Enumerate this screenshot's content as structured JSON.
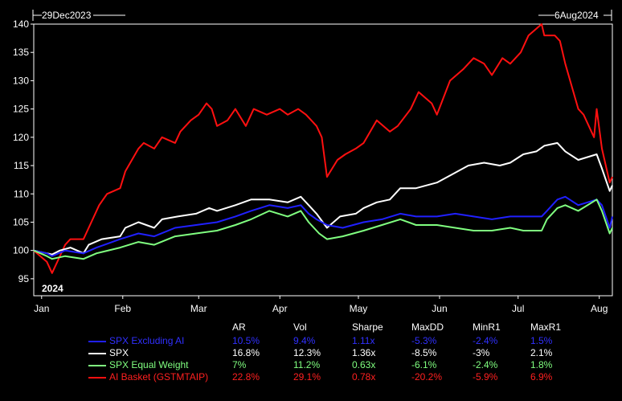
{
  "header": {
    "start_date": "29Dec2023",
    "end_date": "6Aug2024"
  },
  "chart_data": {
    "type": "line",
    "year_label": "2024",
    "x_tick_labels": [
      "Jan",
      "Feb",
      "Mar",
      "Apr",
      "May",
      "Jun",
      "Jul",
      "Aug"
    ],
    "ylim": [
      92,
      140
    ],
    "y_ticks": [
      95,
      100,
      105,
      110,
      115,
      120,
      125,
      130,
      135,
      140
    ],
    "series": [
      {
        "name": "AI Basket (GSTMTAIP)",
        "color": "#ff1010",
        "x": [
          "2023-12-29",
          "2024-01-03",
          "2024-01-05",
          "2024-01-08",
          "2024-01-10",
          "2024-01-12",
          "2024-01-17",
          "2024-01-19",
          "2024-01-23",
          "2024-01-26",
          "2024-01-31",
          "2024-02-02",
          "2024-02-07",
          "2024-02-09",
          "2024-02-13",
          "2024-02-16",
          "2024-02-21",
          "2024-02-23",
          "2024-02-27",
          "2024-03-01",
          "2024-03-04",
          "2024-03-06",
          "2024-03-08",
          "2024-03-12",
          "2024-03-15",
          "2024-03-19",
          "2024-03-22",
          "2024-03-27",
          "2024-04-01",
          "2024-04-04",
          "2024-04-08",
          "2024-04-11",
          "2024-04-15",
          "2024-04-17",
          "2024-04-19",
          "2024-04-23",
          "2024-04-26",
          "2024-04-30",
          "2024-05-03",
          "2024-05-08",
          "2024-05-13",
          "2024-05-16",
          "2024-05-21",
          "2024-05-24",
          "2024-05-29",
          "2024-05-31",
          "2024-06-05",
          "2024-06-10",
          "2024-06-14",
          "2024-06-18",
          "2024-06-21",
          "2024-06-25",
          "2024-06-28",
          "2024-07-02",
          "2024-07-05",
          "2024-07-10",
          "2024-07-11",
          "2024-07-15",
          "2024-07-17",
          "2024-07-19",
          "2024-07-24",
          "2024-07-26",
          "2024-07-30",
          "2024-07-31",
          "2024-08-02",
          "2024-08-05",
          "2024-08-06"
        ],
        "values": [
          100,
          98,
          96,
          99,
          101,
          102,
          102,
          104,
          108,
          110,
          111,
          114,
          118,
          119,
          118,
          120,
          119,
          121,
          123,
          124,
          126,
          125,
          122,
          123,
          125,
          122,
          125,
          124,
          125,
          124,
          125,
          124,
          122,
          120,
          113,
          116,
          117,
          118,
          119,
          123,
          121,
          122,
          125,
          128,
          126,
          124,
          130,
          132,
          134,
          133,
          131,
          134,
          133,
          135,
          138,
          140,
          138,
          138,
          137,
          133,
          125,
          124,
          120,
          125,
          118,
          112,
          113
        ]
      },
      {
        "name": "SPX",
        "color": "#ffffff",
        "x": [
          "2023-12-29",
          "2024-01-03",
          "2024-01-05",
          "2024-01-08",
          "2024-01-12",
          "2024-01-17",
          "2024-01-19",
          "2024-01-24",
          "2024-01-31",
          "2024-02-02",
          "2024-02-07",
          "2024-02-13",
          "2024-02-16",
          "2024-02-22",
          "2024-02-29",
          "2024-03-05",
          "2024-03-08",
          "2024-03-15",
          "2024-03-21",
          "2024-03-28",
          "2024-04-04",
          "2024-04-09",
          "2024-04-12",
          "2024-04-15",
          "2024-04-19",
          "2024-04-24",
          "2024-04-30",
          "2024-05-03",
          "2024-05-08",
          "2024-05-13",
          "2024-05-17",
          "2024-05-23",
          "2024-05-31",
          "2024-06-06",
          "2024-06-12",
          "2024-06-18",
          "2024-06-24",
          "2024-06-28",
          "2024-07-03",
          "2024-07-08",
          "2024-07-11",
          "2024-07-16",
          "2024-07-19",
          "2024-07-24",
          "2024-07-31",
          "2024-08-02",
          "2024-08-05",
          "2024-08-06"
        ],
        "values": [
          100,
          99.5,
          99.3,
          100,
          100.5,
          99.5,
          101,
          102,
          102.5,
          104,
          105,
          104,
          105.5,
          106,
          106.5,
          107.5,
          107,
          108,
          109,
          109,
          108.5,
          109.5,
          108,
          106.5,
          104,
          106,
          106.5,
          107.5,
          108.5,
          109,
          111,
          111,
          112,
          113.5,
          115,
          115.5,
          115,
          115.5,
          117,
          117.5,
          118.5,
          119,
          117.5,
          116,
          117,
          114.5,
          110.5,
          111.5
        ]
      },
      {
        "name": "SPX Excluding AI",
        "color": "#2020ff",
        "x": [
          "2023-12-29",
          "2024-01-03",
          "2024-01-05",
          "2024-01-10",
          "2024-01-17",
          "2024-01-22",
          "2024-01-31",
          "2024-02-07",
          "2024-02-13",
          "2024-02-21",
          "2024-02-29",
          "2024-03-08",
          "2024-03-15",
          "2024-03-21",
          "2024-03-28",
          "2024-04-04",
          "2024-04-09",
          "2024-04-12",
          "2024-04-15",
          "2024-04-19",
          "2024-04-25",
          "2024-05-03",
          "2024-05-10",
          "2024-05-17",
          "2024-05-23",
          "2024-05-31",
          "2024-06-07",
          "2024-06-14",
          "2024-06-21",
          "2024-06-28",
          "2024-07-03",
          "2024-07-10",
          "2024-07-12",
          "2024-07-16",
          "2024-07-19",
          "2024-07-24",
          "2024-07-31",
          "2024-08-02",
          "2024-08-05",
          "2024-08-06"
        ],
        "values": [
          100,
          99.5,
          99,
          100,
          99.5,
          100.5,
          102,
          103,
          102.5,
          104,
          104.5,
          105,
          106,
          107,
          108,
          107.5,
          108,
          106.5,
          105.5,
          104.5,
          104,
          105,
          105.5,
          106.5,
          106,
          106,
          106.5,
          106,
          105.5,
          106,
          106,
          106,
          107,
          109,
          109.5,
          108,
          109,
          108,
          104,
          106
        ]
      },
      {
        "name": "SPX Equal Weight",
        "color": "#80ff80",
        "x": [
          "2023-12-29",
          "2024-01-03",
          "2024-01-05",
          "2024-01-10",
          "2024-01-17",
          "2024-01-22",
          "2024-01-31",
          "2024-02-07",
          "2024-02-13",
          "2024-02-21",
          "2024-02-29",
          "2024-03-08",
          "2024-03-15",
          "2024-03-21",
          "2024-03-28",
          "2024-04-04",
          "2024-04-09",
          "2024-04-12",
          "2024-04-16",
          "2024-04-19",
          "2024-04-25",
          "2024-05-03",
          "2024-05-10",
          "2024-05-17",
          "2024-05-23",
          "2024-05-31",
          "2024-06-07",
          "2024-06-14",
          "2024-06-21",
          "2024-06-28",
          "2024-07-03",
          "2024-07-10",
          "2024-07-12",
          "2024-07-16",
          "2024-07-19",
          "2024-07-24",
          "2024-07-31",
          "2024-08-02",
          "2024-08-05",
          "2024-08-06"
        ],
        "values": [
          100,
          99,
          98.5,
          99,
          98.5,
          99.5,
          100.5,
          101.5,
          101,
          102.5,
          103,
          103.5,
          104.5,
          105.5,
          107,
          106,
          107,
          105,
          103,
          102,
          102.5,
          103.5,
          104.5,
          105.5,
          104.5,
          104.5,
          104,
          103.5,
          103.5,
          104,
          103.5,
          103.5,
          105.5,
          107.5,
          108,
          107,
          109,
          107,
          103,
          104
        ]
      }
    ]
  },
  "legend": {
    "headers": [
      "AR",
      "Vol",
      "Sharpe",
      "MaxDD",
      "MinR1",
      "MaxR1"
    ],
    "rows": [
      {
        "name": "SPX Excluding AI",
        "color": "#2020ff",
        "text_color": "#3030ff",
        "values": [
          "10.5%",
          "9.4%",
          "1.11x",
          "-5.3%",
          "-2.4%",
          "1.5%"
        ]
      },
      {
        "name": "SPX",
        "color": "#ffffff",
        "text_color": "#ffffff",
        "values": [
          "16.8%",
          "12.3%",
          "1.36x",
          "-8.5%",
          "-3%",
          "2.1%"
        ]
      },
      {
        "name": "SPX Equal Weight",
        "color": "#80ff80",
        "text_color": "#80ff80",
        "values": [
          "7%",
          "11.2%",
          "0.63x",
          "-6.1%",
          "-2.4%",
          "1.8%"
        ]
      },
      {
        "name": "AI Basket (GSTMTAIP)",
        "color": "#ff1010",
        "text_color": "#ff2020",
        "values": [
          "22.8%",
          "29.1%",
          "0.78x",
          "-20.2%",
          "-5.9%",
          "6.9%"
        ]
      }
    ]
  }
}
